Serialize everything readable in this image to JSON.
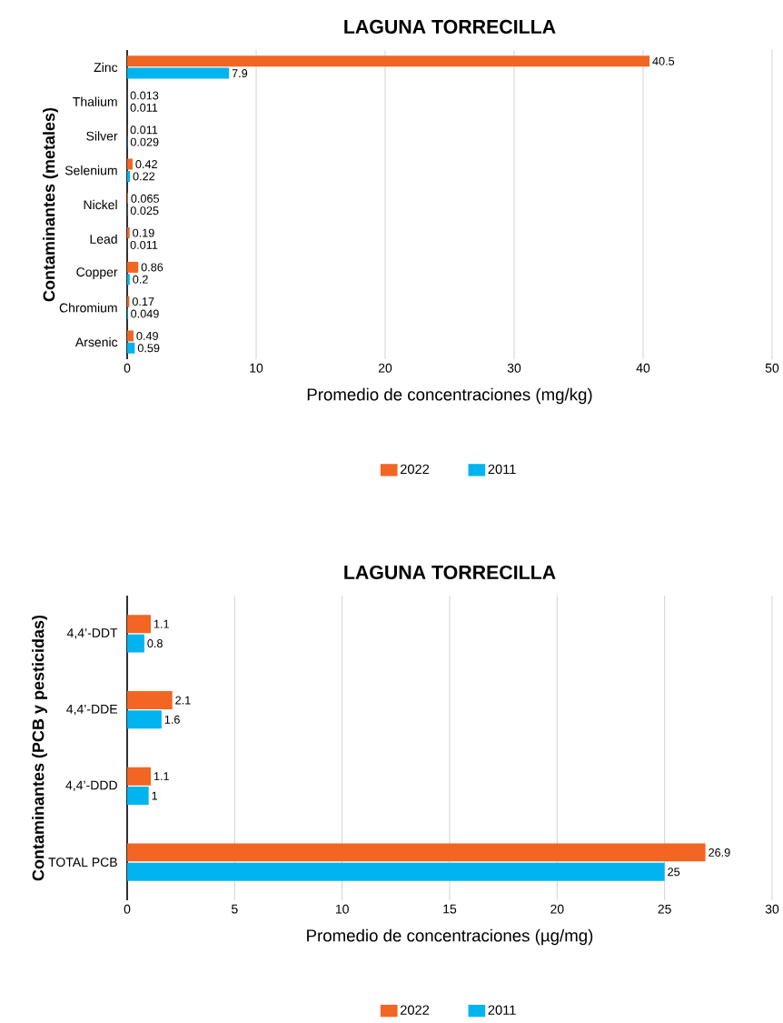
{
  "chart_data": [
    {
      "type": "bar",
      "orientation": "horizontal",
      "title": "LAGUNA TORRECILLA",
      "xlabel": "Promedio de concentraciones (mg/kg)",
      "ylabel": "Contaminantes (metales)",
      "categories": [
        "Zinc",
        "Thalium",
        "Silver",
        "Selenium",
        "Nickel",
        "Lead",
        "Copper",
        "Chromium",
        "Arsenic"
      ],
      "series": [
        {
          "name": "2022",
          "color": "#f26522",
          "values": [
            40.5,
            0.013,
            0.011,
            0.42,
            0.065,
            0.19,
            0.86,
            0.17,
            0.49
          ],
          "value_labels": [
            "40.5",
            "0.013",
            "0.011",
            "0.42",
            "0.065",
            "0.19",
            "0.86",
            "0.17",
            "0.49"
          ]
        },
        {
          "name": "2011",
          "color": "#00b4ef",
          "values": [
            7.9,
            0.011,
            0.029,
            0.22,
            0.025,
            0.011,
            0.2,
            0.049,
            0.59
          ],
          "value_labels": [
            "7.9",
            "0.011",
            "0.029",
            "0.22",
            "0.025",
            "0.011",
            "0.2",
            "0.049",
            "0.59"
          ]
        }
      ],
      "xlim": [
        0,
        50
      ],
      "xticks": [
        0,
        10,
        20,
        30,
        40,
        50
      ],
      "grid": "x",
      "legend": "bottom"
    },
    {
      "type": "bar",
      "orientation": "horizontal",
      "title": "LAGUNA TORRECILLA",
      "xlabel": "Promedio de concentraciones (µg/mg)",
      "ylabel": "Contaminantes (PCB y pesticidas)",
      "categories": [
        "4,4’-DDT",
        "4,4’-DDE",
        "4,4’-DDD",
        "TOTAL PCB"
      ],
      "series": [
        {
          "name": "2022",
          "color": "#f26522",
          "values": [
            1.1,
            2.1,
            1.1,
            26.9
          ],
          "value_labels": [
            "1.1",
            "2.1",
            "1.1",
            "26.9"
          ]
        },
        {
          "name": "2011",
          "color": "#00b4ef",
          "values": [
            0.8,
            1.6,
            1,
            25
          ],
          "value_labels": [
            "0.8",
            "1.6",
            "1",
            "25"
          ]
        }
      ],
      "xlim": [
        0,
        30
      ],
      "xticks": [
        0,
        5,
        10,
        15,
        20,
        25,
        30
      ],
      "grid": "x",
      "legend": "bottom"
    }
  ]
}
